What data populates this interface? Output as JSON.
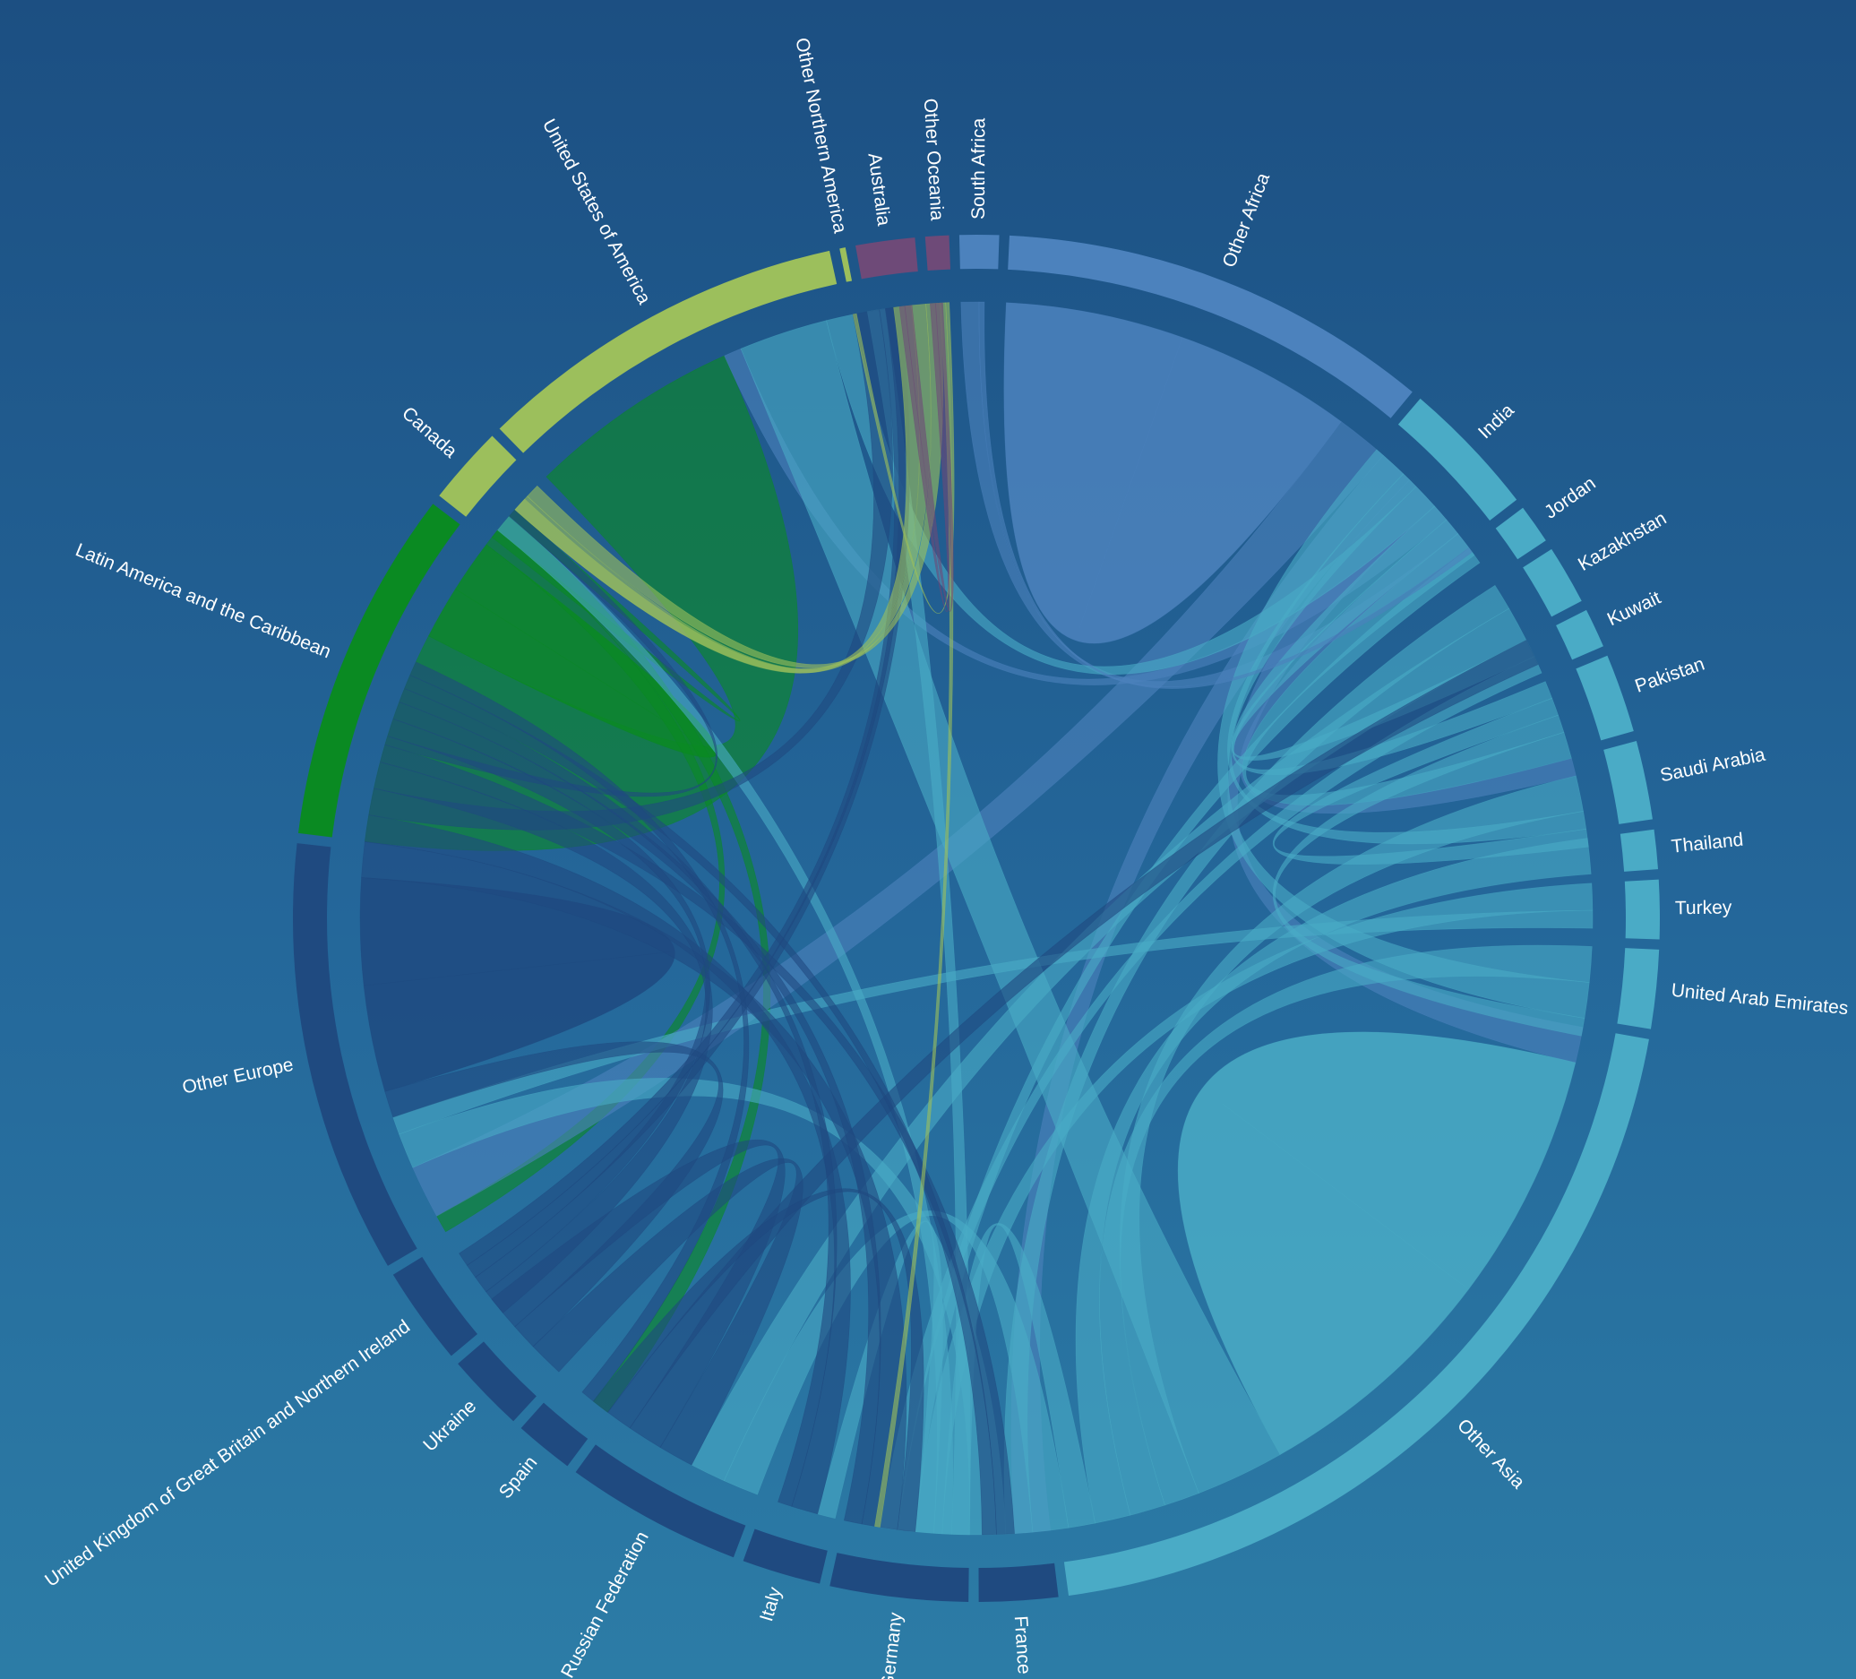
{
  "chart_data": {
    "type": "chord",
    "title": "",
    "colors": {
      "africa": "#4c82bd",
      "asia": "#4aabc6",
      "europe": "#1f4a80",
      "latin_america": "#0a8a22",
      "northern_america": "#9cbf5c",
      "oceania": "#6e4a78"
    },
    "groups": [
      {
        "name": "South Africa",
        "region": "africa",
        "value": 2
      },
      {
        "name": "Other Africa",
        "region": "africa",
        "value": 22
      },
      {
        "name": "India",
        "region": "asia",
        "value": 7
      },
      {
        "name": "Jordan",
        "region": "asia",
        "value": 2
      },
      {
        "name": "Kazakhstan",
        "region": "asia",
        "value": 3
      },
      {
        "name": "Kuwait",
        "region": "asia",
        "value": 2
      },
      {
        "name": "Pakistan",
        "region": "asia",
        "value": 4
      },
      {
        "name": "Saudi Arabia",
        "region": "asia",
        "value": 4
      },
      {
        "name": "Thailand",
        "region": "asia",
        "value": 2
      },
      {
        "name": "Turkey",
        "region": "asia",
        "value": 3
      },
      {
        "name": "United Arab Emirates",
        "region": "asia",
        "value": 4
      },
      {
        "name": "Other Asia",
        "region": "asia",
        "value": 43
      },
      {
        "name": "France",
        "region": "europe",
        "value": 4
      },
      {
        "name": "Germany",
        "region": "europe",
        "value": 7
      },
      {
        "name": "Italy",
        "region": "europe",
        "value": 4
      },
      {
        "name": "Russian Federation",
        "region": "europe",
        "value": 9
      },
      {
        "name": "Spain",
        "region": "europe",
        "value": 3
      },
      {
        "name": "Ukraine",
        "region": "europe",
        "value": 4
      },
      {
        "name": "United Kingdom of Great Britain and Northern Ireland",
        "region": "europe",
        "value": 5
      },
      {
        "name": "Other Europe",
        "region": "europe",
        "value": 22
      },
      {
        "name": "Latin America and the Caribbean",
        "region": "latin_america",
        "value": 18
      },
      {
        "name": "Canada",
        "region": "northern_america",
        "value": 4
      },
      {
        "name": "United States of America",
        "region": "northern_america",
        "value": 19
      },
      {
        "name": "Other Northern America",
        "region": "northern_america",
        "value": 0.3
      },
      {
        "name": "Australia",
        "region": "oceania",
        "value": 3
      },
      {
        "name": "Other Oceania",
        "region": "oceania",
        "value": 1.2
      }
    ],
    "flows": [
      {
        "from": "Latin America and the Caribbean",
        "to": "United States of America",
        "value": 12
      },
      {
        "from": "Latin America and the Caribbean",
        "to": "Latin America and the Caribbean",
        "value": 3
      },
      {
        "from": "Latin America and the Caribbean",
        "to": "Other Europe",
        "value": 1
      },
      {
        "from": "Latin America and the Caribbean",
        "to": "Spain",
        "value": 1
      },
      {
        "from": "Latin America and the Caribbean",
        "to": "Canada",
        "value": 0.5
      },
      {
        "from": "Other Africa",
        "to": "Other Africa",
        "value": 10
      },
      {
        "from": "Other Africa",
        "to": "Other Europe",
        "value": 3
      },
      {
        "from": "Other Africa",
        "to": "France",
        "value": 2
      },
      {
        "from": "Other Africa",
        "to": "Other Asia",
        "value": 2
      },
      {
        "from": "Other Africa",
        "to": "United States of America",
        "value": 1
      },
      {
        "from": "Other Africa",
        "to": "Saudi Arabia",
        "value": 1
      },
      {
        "from": "Other Africa",
        "to": "South Africa",
        "value": 1
      },
      {
        "from": "Other Asia",
        "to": "Other Asia",
        "value": 14
      },
      {
        "from": "Other Asia",
        "to": "United States of America",
        "value": 5
      },
      {
        "from": "Other Asia",
        "to": "Saudi Arabia",
        "value": 2
      },
      {
        "from": "Other Asia",
        "to": "United Arab Emirates",
        "value": 2
      },
      {
        "from": "Other Asia",
        "to": "Thailand",
        "value": 2
      },
      {
        "from": "Other Asia",
        "to": "Germany",
        "value": 1.5
      },
      {
        "from": "Other Asia",
        "to": "Russian Federation",
        "value": 2
      },
      {
        "from": "Other Asia",
        "to": "Kazakhstan",
        "value": 1.5
      },
      {
        "from": "Other Asia",
        "to": "Other Europe",
        "value": 2
      },
      {
        "from": "Other Asia",
        "to": "Australia",
        "value": 1
      },
      {
        "from": "Other Asia",
        "to": "Canada",
        "value": 1
      },
      {
        "from": "Other Asia",
        "to": "Italy",
        "value": 1
      },
      {
        "from": "India",
        "to": "United Arab Emirates",
        "value": 2
      },
      {
        "from": "India",
        "to": "Saudi Arabia",
        "value": 1
      },
      {
        "from": "India",
        "to": "United States of America",
        "value": 1.5
      },
      {
        "from": "India",
        "to": "Pakistan",
        "value": 1
      },
      {
        "from": "India",
        "to": "Kuwait",
        "value": 1
      },
      {
        "from": "Pakistan",
        "to": "Saudi Arabia",
        "value": 1
      },
      {
        "from": "Pakistan",
        "to": "United Arab Emirates",
        "value": 1
      },
      {
        "from": "Pakistan",
        "to": "India",
        "value": 1.5
      },
      {
        "from": "Kazakhstan",
        "to": "Russian Federation",
        "value": 2
      },
      {
        "from": "Jordan",
        "to": "Other Asia",
        "value": 1
      },
      {
        "from": "Kuwait",
        "to": "Other Asia",
        "value": 1
      },
      {
        "from": "Turkey",
        "to": "Germany",
        "value": 1.5
      },
      {
        "from": "Turkey",
        "to": "Other Europe",
        "value": 1
      },
      {
        "from": "Ukraine",
        "to": "Russian Federation",
        "value": 2
      },
      {
        "from": "Ukraine",
        "to": "Other Europe",
        "value": 1.5
      },
      {
        "from": "Russian Federation",
        "to": "Ukraine",
        "value": 2
      },
      {
        "from": "Russian Federation",
        "to": "Kazakhstan",
        "value": 1.5
      },
      {
        "from": "Russian Federation",
        "to": "Germany",
        "value": 1
      },
      {
        "from": "Other Europe",
        "to": "Other Europe",
        "value": 6
      },
      {
        "from": "Other Europe",
        "to": "Germany",
        "value": 2
      },
      {
        "from": "Other Europe",
        "to": "Italy",
        "value": 1.5
      },
      {
        "from": "Other Europe",
        "to": "United States of America",
        "value": 1.5
      },
      {
        "from": "Other Europe",
        "to": "United Kingdom of Great Britain and Northern Ireland",
        "value": 1.5
      },
      {
        "from": "Other Europe",
        "to": "France",
        "value": 1
      },
      {
        "from": "Other Europe",
        "to": "Canada",
        "value": 0.5
      },
      {
        "from": "United Kingdom of Great Britain and Northern Ireland",
        "to": "Other Europe",
        "value": 1
      },
      {
        "from": "United Kingdom of Great Britain and Northern Ireland",
        "to": "Australia",
        "value": 0.8
      },
      {
        "from": "United Kingdom of Great Britain and Northern Ireland",
        "to": "United States of America",
        "value": 0.8
      },
      {
        "from": "Germany",
        "to": "Other Europe",
        "value": 1
      },
      {
        "from": "Italy",
        "to": "Other Europe",
        "value": 0.8
      },
      {
        "from": "France",
        "to": "Other Europe",
        "value": 0.8
      },
      {
        "from": "Spain",
        "to": "Other Europe",
        "value": 0.8
      },
      {
        "from": "Canada",
        "to": "United States of America",
        "value": 1
      },
      {
        "from": "United States of America",
        "to": "Latin America and the Caribbean",
        "value": 0.8
      },
      {
        "from": "United States of America",
        "to": "Canada",
        "value": 0.8
      },
      {
        "from": "United States of America",
        "to": "Other Asia",
        "value": 0.3
      },
      {
        "from": "Other Northern America",
        "to": "United States of America",
        "value": 0.2
      },
      {
        "from": "Australia",
        "to": "Other Oceania",
        "value": 0.3
      },
      {
        "from": "Other Oceania",
        "to": "Australia",
        "value": 0.4
      },
      {
        "from": "South Africa",
        "to": "Other Africa",
        "value": 0.3
      }
    ]
  }
}
